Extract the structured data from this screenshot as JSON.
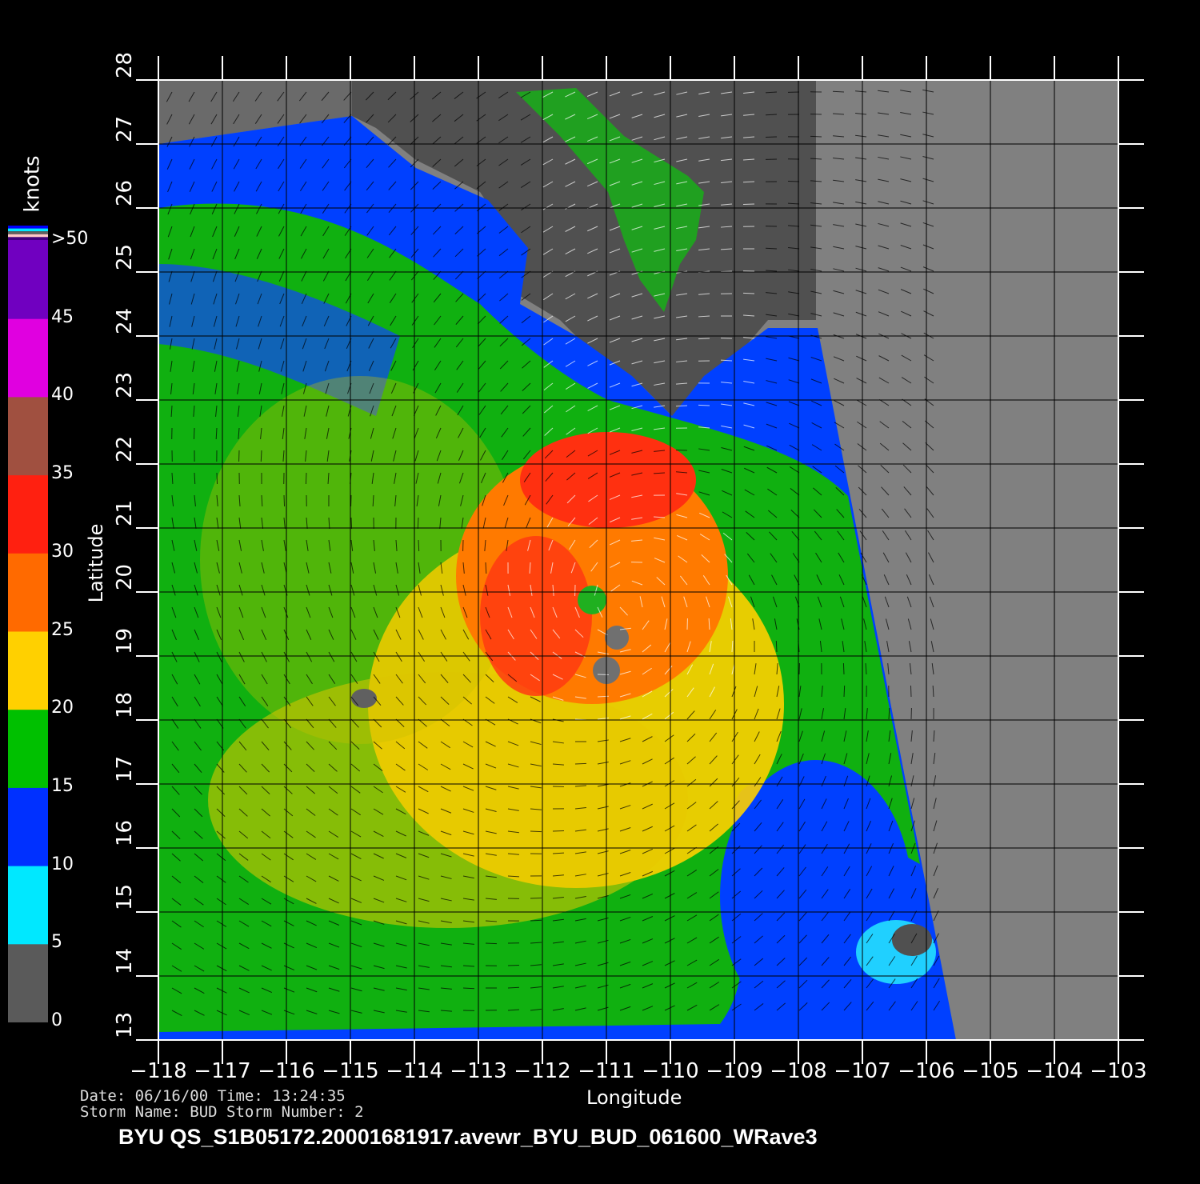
{
  "chart_data": {
    "type": "heatmap",
    "xlabel": "Longitude",
    "ylabel": "Latitude",
    "xlim": [
      -118,
      -103
    ],
    "ylim": [
      13,
      28
    ],
    "x_ticks": [
      "-118",
      "-117",
      "-116",
      "-115",
      "-114",
      "-113",
      "-112",
      "-111",
      "-110",
      "-109",
      "-108",
      "-107",
      "-106",
      "-105",
      "-104",
      "-103"
    ],
    "y_ticks": [
      "13",
      "14",
      "15",
      "16",
      "17",
      "18",
      "19",
      "20",
      "21",
      "22",
      "23",
      "24",
      "25",
      "26",
      "27",
      "28"
    ],
    "grid": true,
    "storm_center": {
      "lon": -110.7,
      "lat": 19.8
    },
    "colorbar": {
      "label": "knots",
      "ticks": [
        "0",
        "5",
        "10",
        "15",
        "20",
        "25",
        "30",
        "35",
        "40",
        "45",
        ">50"
      ],
      "colors": {
        "0-5": "#5a5a5a",
        "5-10": "#00e8ff",
        "10-15": "#0030ff",
        "15-20": "#00c000",
        "20-25": "#ffd000",
        "25-30": "#ff6a00",
        "30-35": "#ff2010",
        "35-40": "#a05040",
        "40-45": "#e000e0",
        "45-50": "#7000c0"
      }
    }
  },
  "info": {
    "date_line": "Date: 06/16/00   Time: 13:24:35",
    "storm_line": "Storm  Name: BUD   Storm  Number: 2"
  },
  "title": "BYU  QS_S1B05172.20001681917.avewr_BYU_BUD_061600_WRave3",
  "colors": {
    "background": "#000000",
    "no_data": "#808080",
    "land": "#505050"
  }
}
